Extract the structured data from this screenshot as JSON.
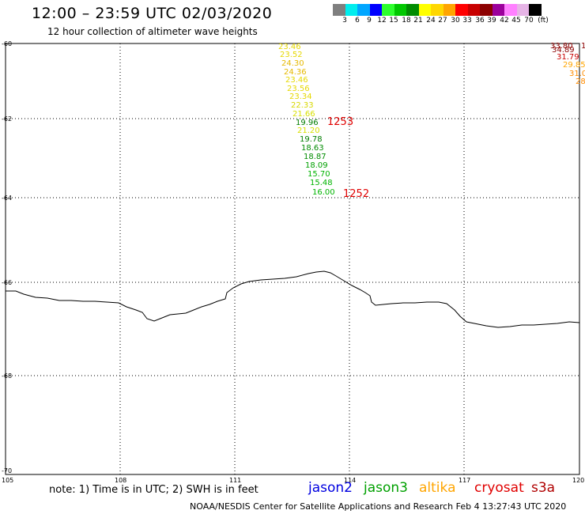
{
  "title": "12:00 – 23:59 UTC 02/03/2020",
  "subtitle": "12 hour collection of altimeter wave heights",
  "colorbar": {
    "colors": [
      "#7f7f7f",
      "#00eded",
      "#00a6ff",
      "#0000ff",
      "#2dff2d",
      "#00c800",
      "#008c00",
      "#ffff00",
      "#ffd700",
      "#ffa500",
      "#ff0000",
      "#c80000",
      "#8c0000",
      "#9b009b",
      "#ff80ff",
      "#e6b4e6",
      "#000000"
    ],
    "labels": [
      "3",
      "6",
      "9",
      "12",
      "15",
      "18",
      "21",
      "24",
      "27",
      "30",
      "33",
      "36",
      "39",
      "42",
      "45",
      "70",
      "(ft)"
    ]
  },
  "map": {
    "lat_labels": [
      "-60",
      "-62",
      "-64",
      "-66",
      "-68",
      "-70"
    ],
    "lon_labels": [
      "105",
      "108",
      "111",
      "114",
      "117",
      "120"
    ]
  },
  "observations": [
    {
      "value": "23.46",
      "color": "#e6d800"
    },
    {
      "value": "23.52",
      "color": "#e6d800"
    },
    {
      "value": "24.30",
      "color": "#e6b800"
    },
    {
      "value": "24.36",
      "color": "#e6b800"
    },
    {
      "value": "23.46",
      "color": "#e6d800"
    },
    {
      "value": "23.56",
      "color": "#e6d800"
    },
    {
      "value": "23.34",
      "color": "#e6d800"
    },
    {
      "value": "22.33",
      "color": "#d8d800"
    },
    {
      "value": "21.66",
      "color": "#d8e000"
    },
    {
      "value": "19.96",
      "color": "#007d00"
    },
    {
      "value": "21.20",
      "color": "#d8e000"
    },
    {
      "value": "19.78",
      "color": "#007d00"
    },
    {
      "value": "18.63",
      "color": "#008c00"
    },
    {
      "value": "18.87",
      "color": "#008c00"
    },
    {
      "value": "18.09",
      "color": "#00a000"
    },
    {
      "value": "15.70",
      "color": "#00b400"
    },
    {
      "value": "15.48",
      "color": "#00b400"
    },
    {
      "value": "16.00",
      "color": "#00b400"
    }
  ],
  "pass_times": [
    "1253",
    "1252"
  ],
  "edge_observations": [
    {
      "value": "33.80",
      "color": "#8c0000"
    },
    {
      "value": "1",
      "color": "#8c0000"
    },
    {
      "value": "34.89",
      "color": "#8c0000"
    },
    {
      "value": "31.79",
      "color": "#c80000"
    },
    {
      "value": "29.85",
      "color": "#ffa500"
    },
    {
      "value": "31.0",
      "color": "#ff8c00"
    },
    {
      "value": "28",
      "color": "#ff8c00"
    }
  ],
  "note": "note:  1) Time is in UTC;  2) SWH is in feet",
  "legend": [
    {
      "label": "jason2",
      "color": "#0000e0"
    },
    {
      "label": "jason3",
      "color": "#00a000"
    },
    {
      "label": "altika",
      "color": "#ffa500"
    },
    {
      "label": "cryosat",
      "color": "#e00000"
    },
    {
      "label": "s3a",
      "color": "#b00000"
    }
  ],
  "credit": "NOAA/NESDIS Center for Satellite Applications and Research    Feb  4 13:27:43 UTC 2020"
}
